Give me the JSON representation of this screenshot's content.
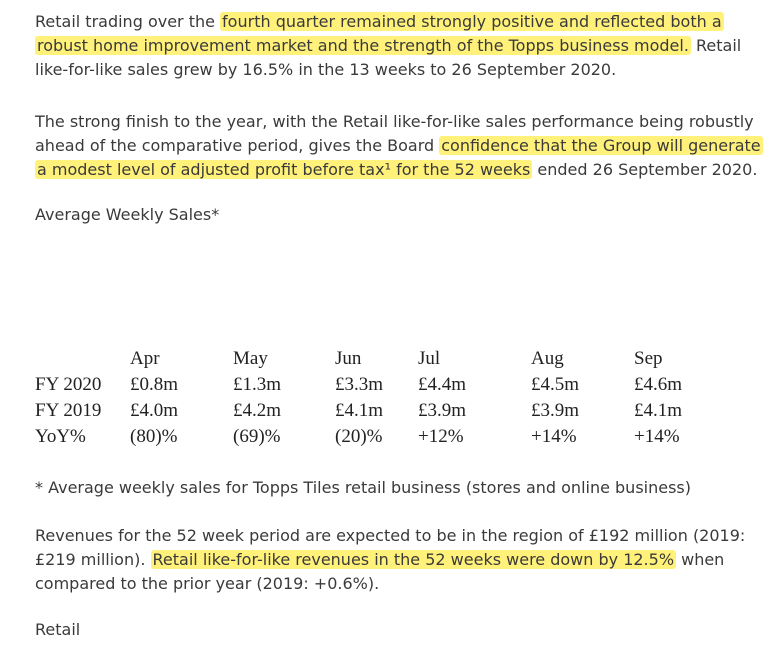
{
  "paragraph1": {
    "t1": "Retail trading over the ",
    "h1": "fourth quarter remained strongly positive and reflected both a robust home improvement market and the strength of the Topps business model.",
    "t2": " Retail like-for-like sales grew by 16.5% in the 13 weeks to 26 September 2020."
  },
  "paragraph2": {
    "t1": "The strong finish to the year, with the Retail like-for-like sales performance being robustly ahead of the comparative period, gives the Board ",
    "h1": "confidence that the Group will generate a modest level of adjusted profit before tax¹ for the 52 weeks",
    "t2": " ended 26 September 2020."
  },
  "average_weekly_sales_label": "Average Weekly Sales*",
  "sales_table": {
    "months": [
      "Apr",
      "May",
      "Jun",
      "Jul",
      "Aug",
      "Sep"
    ],
    "rows": [
      {
        "label": "FY 2020",
        "values": [
          "£0.8m",
          "£1.3m",
          "£3.3m",
          "£4.4m",
          "£4.5m",
          "£4.6m"
        ]
      },
      {
        "label": "FY 2019",
        "values": [
          "£4.0m",
          "£4.2m",
          "£4.1m",
          "£3.9m",
          "£3.9m",
          "£4.1m"
        ]
      },
      {
        "label": "YoY%",
        "values": [
          "(80)%",
          "(69)%",
          "(20)%",
          "+12%",
          "+14%",
          "+14%"
        ]
      }
    ]
  },
  "footnote": "* Average weekly sales for Topps Tiles retail business (stores and online business)",
  "paragraph3": {
    "t1": "Revenues for the 52 week period are expected to be in the region of £192 million (2019: £219 million). ",
    "h1": "Retail like-for-like revenues in the 52 weeks were down by 12.5%",
    "t2": " when compared to the prior year (2019: +0.6%)."
  },
  "retail_heading": "Retail",
  "colors": {
    "highlight": "#fff17a",
    "text": "#3a3a3a"
  }
}
